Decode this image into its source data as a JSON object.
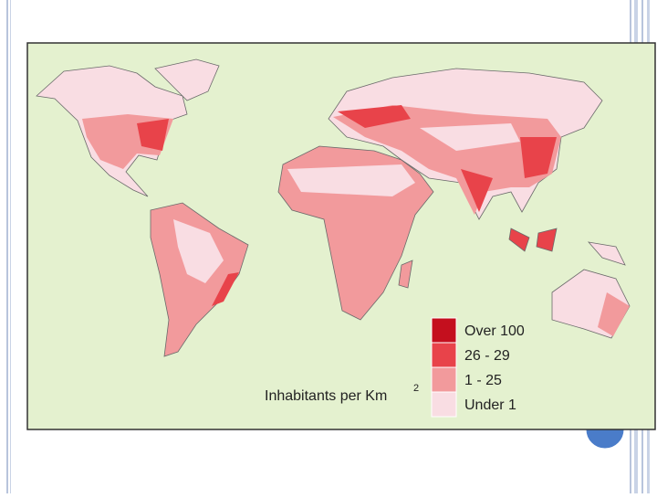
{
  "map": {
    "legend": {
      "title": "Inhabitants per Km",
      "title_superscript": "2",
      "items": [
        {
          "label": "Over 100",
          "color": "#c40f1e"
        },
        {
          "label": "26 - 29",
          "color": "#e8434a"
        },
        {
          "label": "1 - 25",
          "color": "#f29a9c"
        },
        {
          "label": "Under 1",
          "color": "#f9dde3"
        }
      ]
    }
  }
}
